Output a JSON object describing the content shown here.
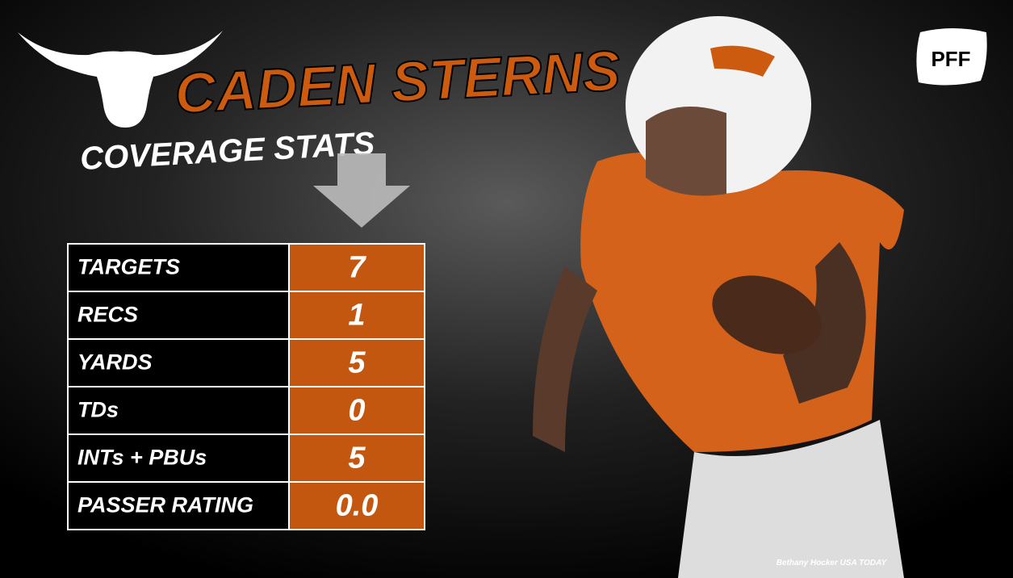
{
  "header": {
    "title": "CADEN STERNS",
    "subtitle": "COVERAGE STATS"
  },
  "logo": "PFF",
  "table": {
    "rows": [
      [
        "TARGETS",
        "7"
      ],
      [
        "RECS",
        "1"
      ],
      [
        "YARDS",
        "5"
      ],
      [
        "TDs",
        "0"
      ],
      [
        "INTs + PBUs",
        "5"
      ],
      [
        "PASSER RATING",
        "0.0"
      ]
    ]
  },
  "credit": "Bethany Hocker USA TODAY"
}
